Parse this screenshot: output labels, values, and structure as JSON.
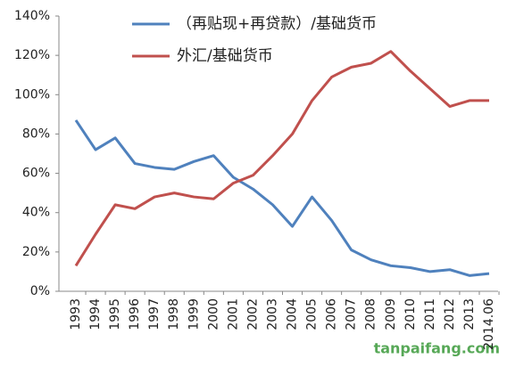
{
  "chart_data": {
    "type": "line",
    "categories": [
      "1993",
      "1994",
      "1995",
      "1996",
      "1997",
      "1998",
      "1999",
      "2000",
      "2001",
      "2002",
      "2003",
      "2004",
      "2005",
      "2006",
      "2007",
      "2008",
      "2009",
      "2010",
      "2011",
      "2012",
      "2013",
      "2014.06"
    ],
    "series": [
      {
        "name": "（再贴现+再贷款）/基础货币",
        "color": "#4f81bd",
        "values": [
          87,
          72,
          78,
          65,
          63,
          62,
          66,
          69,
          58,
          52,
          44,
          33,
          48,
          36,
          21,
          16,
          13,
          12,
          10,
          11,
          8,
          9
        ]
      },
      {
        "name": "外汇/基础货币",
        "color": "#c0504d",
        "values": [
          13,
          29,
          44,
          42,
          48,
          50,
          48,
          47,
          55,
          59,
          69,
          80,
          97,
          109,
          114,
          116,
          122,
          112,
          103,
          94,
          97,
          97
        ]
      }
    ],
    "ylim": [
      0,
      140
    ],
    "yticks": [
      {
        "value": 0,
        "label": "0%"
      },
      {
        "value": 20,
        "label": "20%"
      },
      {
        "value": 40,
        "label": "40%"
      },
      {
        "value": 60,
        "label": "60%"
      },
      {
        "value": 80,
        "label": "80%"
      },
      {
        "value": 100,
        "label": "100%"
      },
      {
        "value": 120,
        "label": "120%"
      },
      {
        "value": 140,
        "label": "140%"
      }
    ],
    "watermark": "tanpaifang.com"
  }
}
